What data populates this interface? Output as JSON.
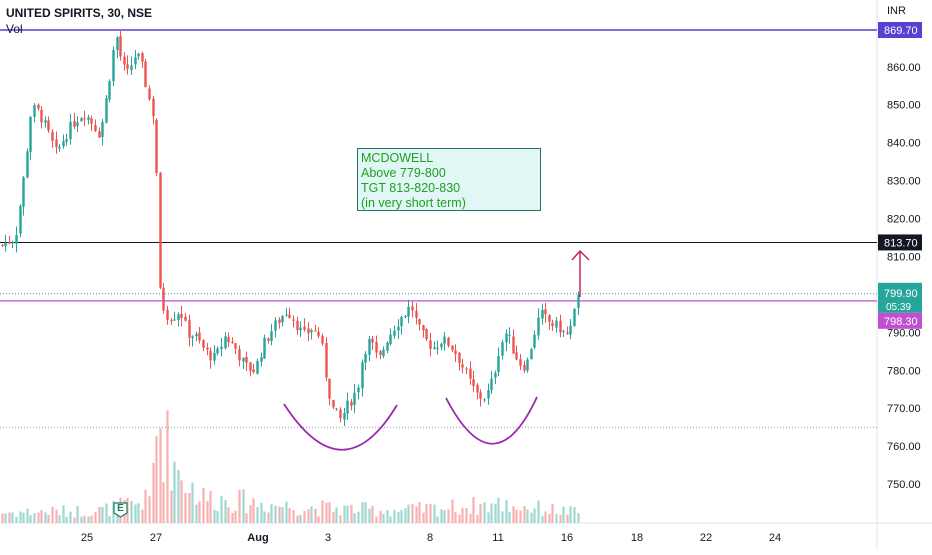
{
  "header": {
    "title": "UNITED SPIRITS, 30, NSE",
    "volume_label": "Vol"
  },
  "axis": {
    "currency": "INR",
    "ticks": [
      "860.00",
      "850.00",
      "840.00",
      "830.00",
      "820.00",
      "810.00",
      "790.00",
      "780.00",
      "770.00",
      "760.00",
      "750.00"
    ]
  },
  "price_labels": {
    "top_line": "869.70",
    "target_line": "813.70",
    "last_price": "799.90",
    "countdown": "05:39",
    "resistance": "798.30"
  },
  "x_axis": {
    "labels": [
      "25",
      "27",
      "Aug",
      "3",
      "8",
      "11",
      "16",
      "18",
      "22",
      "24"
    ]
  },
  "annotation": {
    "lines": [
      "MCDOWELL",
      "Above 779-800",
      "TGT 813-820-830",
      "(in very short term)"
    ]
  },
  "earnings_badge": "E",
  "colors": {
    "up": "#26a69a",
    "down": "#ef5350",
    "top_line": "#5b3fd0",
    "resistance": "#c050d0",
    "target": "#131722",
    "arrow": "#c2185b",
    "cup": "#9c27b0",
    "note_text": "#20a020",
    "note_bg": "#e0f7f6"
  },
  "chart_data": {
    "type": "candlestick",
    "symbol": "UNITED SPIRITS",
    "interval": "30",
    "exchange": "NSE",
    "currency": "INR",
    "y_range": [
      740,
      878
    ],
    "levels": {
      "top": 869.7,
      "target": 813.7,
      "resistance": 798.3,
      "support_dotted": 765.0,
      "last_price": 799.9
    },
    "price_path": [
      {
        "x": 1,
        "y": 813
      },
      {
        "x": 15,
        "y": 815
      },
      {
        "x": 24,
        "y": 832
      },
      {
        "x": 31,
        "y": 849
      },
      {
        "x": 39,
        "y": 848
      },
      {
        "x": 47,
        "y": 843
      },
      {
        "x": 56,
        "y": 837
      },
      {
        "x": 65,
        "y": 842
      },
      {
        "x": 75,
        "y": 846
      },
      {
        "x": 84,
        "y": 848
      },
      {
        "x": 93,
        "y": 845
      },
      {
        "x": 100,
        "y": 842
      },
      {
        "x": 107,
        "y": 853
      },
      {
        "x": 113,
        "y": 864
      },
      {
        "x": 117,
        "y": 868
      },
      {
        "x": 122,
        "y": 860
      },
      {
        "x": 128,
        "y": 858
      },
      {
        "x": 134,
        "y": 863
      },
      {
        "x": 140,
        "y": 862
      },
      {
        "x": 146,
        "y": 855
      },
      {
        "x": 152,
        "y": 848
      },
      {
        "x": 155,
        "y": 835
      },
      {
        "x": 157,
        "y": 816
      },
      {
        "x": 160,
        "y": 800
      },
      {
        "x": 165,
        "y": 795
      },
      {
        "x": 172,
        "y": 794
      },
      {
        "x": 180,
        "y": 796
      },
      {
        "x": 187,
        "y": 790
      },
      {
        "x": 195,
        "y": 789
      },
      {
        "x": 205,
        "y": 785
      },
      {
        "x": 215,
        "y": 783
      },
      {
        "x": 225,
        "y": 789
      },
      {
        "x": 235,
        "y": 786
      },
      {
        "x": 245,
        "y": 781
      },
      {
        "x": 255,
        "y": 780
      },
      {
        "x": 262,
        "y": 786
      },
      {
        "x": 270,
        "y": 790
      },
      {
        "x": 278,
        "y": 793
      },
      {
        "x": 287,
        "y": 796
      },
      {
        "x": 295,
        "y": 793
      },
      {
        "x": 303,
        "y": 789
      },
      {
        "x": 311,
        "y": 791
      },
      {
        "x": 320,
        "y": 789
      },
      {
        "x": 326,
        "y": 778
      },
      {
        "x": 332,
        "y": 770
      },
      {
        "x": 340,
        "y": 767
      },
      {
        "x": 348,
        "y": 771
      },
      {
        "x": 357,
        "y": 775
      },
      {
        "x": 363,
        "y": 785
      },
      {
        "x": 370,
        "y": 788
      },
      {
        "x": 378,
        "y": 782
      },
      {
        "x": 386,
        "y": 788
      },
      {
        "x": 395,
        "y": 792
      },
      {
        "x": 404,
        "y": 795
      },
      {
        "x": 411,
        "y": 797
      },
      {
        "x": 418,
        "y": 791
      },
      {
        "x": 425,
        "y": 788
      },
      {
        "x": 433,
        "y": 786
      },
      {
        "x": 441,
        "y": 788
      },
      {
        "x": 449,
        "y": 787
      },
      {
        "x": 457,
        "y": 784
      },
      {
        "x": 464,
        "y": 780
      },
      {
        "x": 471,
        "y": 776
      },
      {
        "x": 478,
        "y": 773
      },
      {
        "x": 486,
        "y": 773
      },
      {
        "x": 493,
        "y": 778
      },
      {
        "x": 499,
        "y": 786
      },
      {
        "x": 506,
        "y": 790
      },
      {
        "x": 512,
        "y": 786
      },
      {
        "x": 519,
        "y": 782
      },
      {
        "x": 526,
        "y": 781
      },
      {
        "x": 533,
        "y": 789
      },
      {
        "x": 540,
        "y": 795
      },
      {
        "x": 547,
        "y": 793
      },
      {
        "x": 553,
        "y": 792
      },
      {
        "x": 560,
        "y": 791
      },
      {
        "x": 566,
        "y": 789
      },
      {
        "x": 572,
        "y": 792
      },
      {
        "x": 577,
        "y": 799.9
      }
    ],
    "volume_profile": [
      {
        "x": 0,
        "v": 0.1
      },
      {
        "x": 100,
        "v": 0.12
      },
      {
        "x": 150,
        "v": 0.22
      },
      {
        "x": 157,
        "v": 1.0
      },
      {
        "x": 175,
        "v": 0.55
      },
      {
        "x": 200,
        "v": 0.25
      },
      {
        "x": 300,
        "v": 0.15
      },
      {
        "x": 400,
        "v": 0.12
      },
      {
        "x": 500,
        "v": 0.18
      },
      {
        "x": 577,
        "v": 0.1
      }
    ],
    "annotations": [
      "MCDOWELL",
      "Above 779-800",
      "TGT 813-820-830",
      "(in very short term)"
    ]
  }
}
